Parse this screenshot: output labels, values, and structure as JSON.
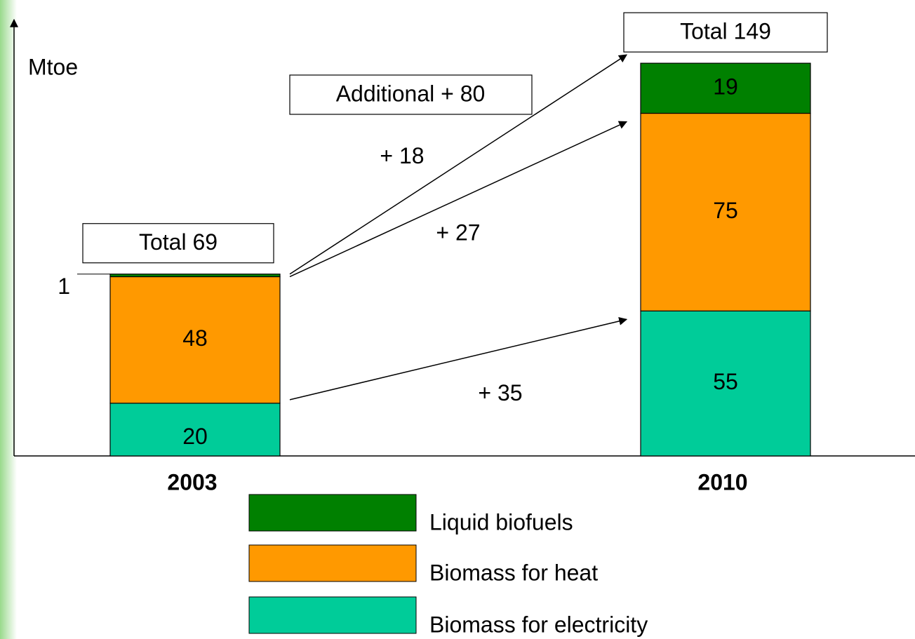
{
  "chart_data": {
    "type": "stacked_bar",
    "y_label": "Mtoe",
    "categories": [
      "2003",
      "2010"
    ],
    "series": [
      {
        "name": "Biomass for electricity",
        "color": "#00cc99",
        "values": [
          20,
          55
        ],
        "change_label": "+ 35"
      },
      {
        "name": "Biomass for heat",
        "color": "#ff9900",
        "values": [
          48,
          75
        ],
        "change_label": "+ 27"
      },
      {
        "name": "Liquid biofuels",
        "color": "#008000",
        "values": [
          1,
          19
        ],
        "change_label": "+ 18"
      }
    ],
    "total_labels": [
      "Total 69",
      "Total 149"
    ],
    "annotation": "Additional + 80",
    "ylim": [
      0,
      165
    ]
  }
}
